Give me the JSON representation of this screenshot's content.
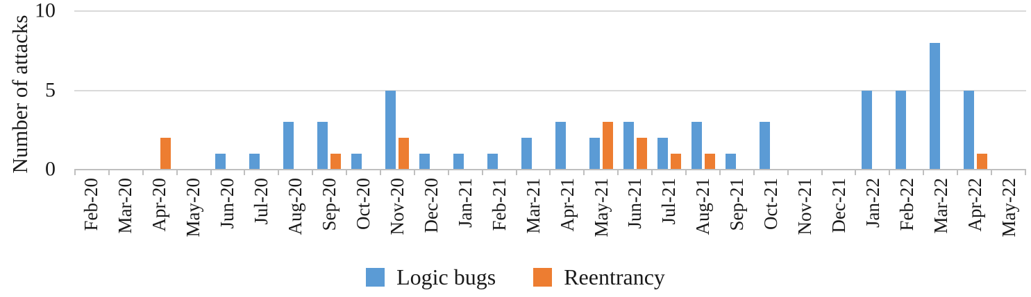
{
  "chart_data": {
    "type": "bar",
    "title": "",
    "xlabel": "",
    "ylabel": "Number of attacks",
    "ylim": [
      0,
      10
    ],
    "yticks": [
      0,
      5,
      10
    ],
    "grid": "horizontal",
    "legend_position": "bottom-center",
    "categories": [
      "Feb-20",
      "Mar-20",
      "Apr-20",
      "May-20",
      "Jun-20",
      "Jul-20",
      "Aug-20",
      "Sep-20",
      "Oct-20",
      "Nov-20",
      "Dec-20",
      "Jan-21",
      "Feb-21",
      "Mar-21",
      "Apr-21",
      "May-21",
      "Jun-21",
      "Jul-21",
      "Aug-21",
      "Sep-21",
      "Oct-21",
      "Nov-21",
      "Dec-21",
      "Jan-22",
      "Feb-22",
      "Mar-22",
      "Apr-22",
      "May-22"
    ],
    "series": [
      {
        "name": "Logic bugs",
        "color": "#5B9BD5",
        "values": [
          0,
          0,
          0,
          0,
          1,
          1,
          3,
          3,
          1,
          5,
          1,
          1,
          1,
          2,
          3,
          2,
          3,
          2,
          3,
          1,
          3,
          0,
          0,
          5,
          5,
          8,
          5,
          0
        ]
      },
      {
        "name": "Reentrancy",
        "color": "#ED7D31",
        "values": [
          0,
          0,
          2,
          0,
          0,
          0,
          0,
          1,
          0,
          2,
          0,
          0,
          0,
          0,
          0,
          3,
          2,
          1,
          1,
          0,
          0,
          0,
          0,
          0,
          0,
          0,
          1,
          0
        ]
      }
    ]
  },
  "colors": {
    "gridline": "#D9D9D9",
    "axis_line": "#BFBFBF",
    "text": "#1a1a1a"
  }
}
